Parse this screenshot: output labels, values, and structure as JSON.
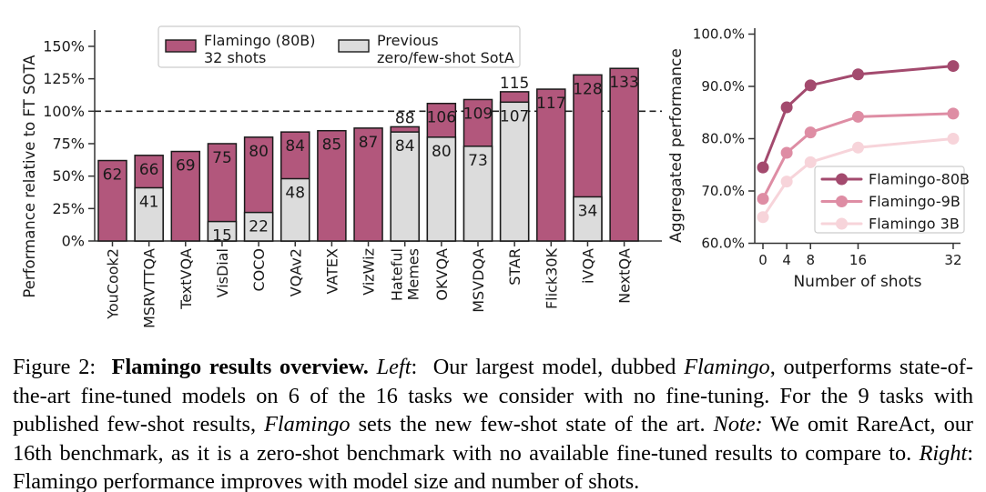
{
  "chart_data": [
    {
      "id": "left",
      "type": "bar",
      "ylabel": "Performance relative to FT SOTA",
      "ylim": [
        0,
        163
      ],
      "yticks": [
        0,
        25,
        50,
        75,
        100,
        125,
        150
      ],
      "ytick_suffix": "%",
      "reference_line": 100,
      "grid": false,
      "legend_position": "upper center",
      "categories": [
        "YouCook2",
        "MSRVTTQA",
        "TextVQA",
        "VisDial",
        "COCO",
        "VQAv2",
        "VATEX",
        "VizWiz",
        "Hateful Memes",
        "OKVQA",
        "MSVDQA",
        "STAR",
        "Flick30K",
        "iVQA",
        "NextQA"
      ],
      "series": [
        {
          "name": "Flamingo (80B) 32 shots",
          "legend_lines": [
            "Flamingo (80B)",
            "32 shots"
          ],
          "color": "#b2577c",
          "edge_color": "#1a1a1a",
          "values": [
            62,
            66,
            69,
            75,
            80,
            84,
            85,
            87,
            88,
            106,
            109,
            115,
            117,
            128,
            133
          ]
        },
        {
          "name": "Previous zero/few-shot SotA",
          "legend_lines": [
            "Previous",
            "zero/few-shot SotA"
          ],
          "color": "#dcdcdc",
          "edge_color": "#1a1a1a",
          "values": [
            null,
            41,
            null,
            15,
            22,
            48,
            null,
            null,
            84,
            80,
            73,
            107,
            null,
            34,
            null
          ]
        }
      ],
      "value_labels_above_indices": [
        8,
        11
      ]
    },
    {
      "id": "right",
      "type": "line",
      "xlabel": "Number of shots",
      "ylabel": "Aggregated performance",
      "x": [
        0,
        4,
        8,
        16,
        32
      ],
      "xtick_labels": [
        "0",
        "4",
        "8",
        "16",
        "32"
      ],
      "ylim": [
        60,
        100
      ],
      "yticks": [
        60,
        70,
        80,
        90,
        100
      ],
      "ytick_labels": [
        "60.0%",
        "70.0%",
        "80.0%",
        "90.0%",
        "100.0%"
      ],
      "grid": false,
      "legend_position": "lower right",
      "series": [
        {
          "name": "Flamingo-80B",
          "color": "#a34a6e",
          "values": [
            74.5,
            86.0,
            90.2,
            92.3,
            93.9
          ]
        },
        {
          "name": "Flamingo-9B",
          "color": "#de8da4",
          "values": [
            68.5,
            77.3,
            81.2,
            84.2,
            84.8
          ]
        },
        {
          "name": "Flamingo 3B",
          "color": "#f7d4da",
          "values": [
            65.0,
            71.8,
            75.5,
            78.3,
            80.0
          ]
        }
      ]
    }
  ],
  "caption": {
    "segments": [
      {
        "text": "Figure 2:  ",
        "style": "normal"
      },
      {
        "text": "Flamingo results overview.",
        "style": "bold"
      },
      {
        "text": " ",
        "style": "normal"
      },
      {
        "text": "Left",
        "style": "italic"
      },
      {
        "text": ":  Our largest model, dubbed ",
        "style": "normal"
      },
      {
        "text": "Flamingo",
        "style": "italic"
      },
      {
        "text": ", outperforms state-of-the-art fine-tuned models on 6 of the 16 tasks we consider with no fine-tuning. For the 9 tasks with published few-shot results, ",
        "style": "normal"
      },
      {
        "text": "Flamingo",
        "style": "italic"
      },
      {
        "text": " sets the new few-shot state of the art. ",
        "style": "normal"
      },
      {
        "text": "Note:",
        "style": "italic"
      },
      {
        "text": " We omit RareAct, our 16th benchmark, as it is a zero-shot benchmark with no available fine-tuned results to compare to. ",
        "style": "normal"
      },
      {
        "text": "Right",
        "style": "italic"
      },
      {
        "text": ": Flamingo performance improves with model size and number of shots.",
        "style": "normal"
      }
    ]
  }
}
